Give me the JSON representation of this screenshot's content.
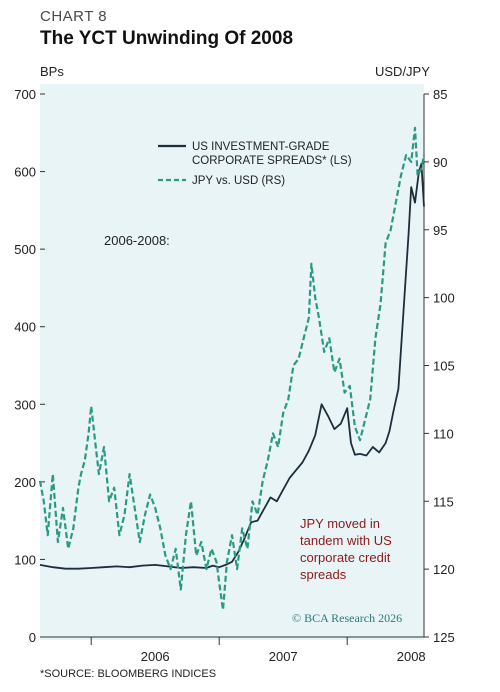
{
  "header": {
    "chart_label": "CHART 8",
    "title": "The YCT Unwinding Of 2008"
  },
  "axes": {
    "left_unit": "BPs",
    "right_unit": "USD/JPY"
  },
  "legend": {
    "spreads_line1": "US INVESTMENT-GRADE",
    "spreads_line2": "CORPORATE SPREADS* (LS)",
    "jpy": "JPY vs. USD (RS)"
  },
  "annotations": {
    "period": "2006-2008:",
    "note_line1": "JPY moved in",
    "note_line2": "tandem with US",
    "note_line3": "corporate credit",
    "note_line4": "spreads"
  },
  "footer": {
    "source": "*SOURCE: BLOOMBERG INDICES",
    "watermark": "© BCA Research 2026"
  },
  "colors": {
    "spreads": "#1c2e3a",
    "jpy": "#2a9a82",
    "panel": "#e8f4f6",
    "annotation": "#8a1a1a"
  },
  "chart_data": {
    "type": "line",
    "x_ticks": [
      "2006",
      "2007",
      "2008"
    ],
    "left_axis": {
      "ylim": [
        0,
        700
      ],
      "ticks": [
        0,
        100,
        200,
        300,
        400,
        500,
        600,
        700
      ]
    },
    "right_axis": {
      "ylim": [
        125,
        85
      ],
      "inverted": true,
      "ticks": [
        85,
        90,
        95,
        100,
        105,
        110,
        115,
        120,
        125
      ]
    },
    "xlim": [
      2005.6,
      2008.6
    ],
    "series": [
      {
        "name": "US INVESTMENT-GRADE CORPORATE SPREADS* (LS)",
        "axis": "left",
        "style": "solid",
        "x": [
          2005.6,
          2005.7,
          2005.8,
          2005.9,
          2006.0,
          2006.1,
          2006.2,
          2006.3,
          2006.4,
          2006.5,
          2006.6,
          2006.7,
          2006.8,
          2006.9,
          2006.95,
          2007.0,
          2007.05,
          2007.1,
          2007.15,
          2007.2,
          2007.25,
          2007.3,
          2007.35,
          2007.4,
          2007.45,
          2007.5,
          2007.55,
          2007.6,
          2007.65,
          2007.7,
          2007.75,
          2007.8,
          2007.85,
          2007.9,
          2007.95,
          2008.0,
          2008.03,
          2008.06,
          2008.1,
          2008.15,
          2008.2,
          2008.25,
          2008.3,
          2008.33,
          2008.36,
          2008.4,
          2008.44,
          2008.48,
          2008.5,
          2008.53,
          2008.56,
          2008.58,
          2008.6
        ],
        "values": [
          93,
          90,
          88,
          88,
          89,
          90,
          91,
          90,
          92,
          93,
          91,
          89,
          90,
          89,
          92,
          90,
          93,
          97,
          110,
          128,
          148,
          150,
          165,
          180,
          175,
          190,
          205,
          215,
          225,
          240,
          260,
          300,
          285,
          268,
          275,
          295,
          250,
          235,
          236,
          234,
          245,
          238,
          250,
          265,
          290,
          320,
          420,
          520,
          580,
          560,
          600,
          610,
          555
        ]
      },
      {
        "name": "JPY vs. USD (RS)",
        "axis": "right",
        "style": "dashed",
        "x": [
          2005.6,
          2005.63,
          2005.66,
          2005.7,
          2005.74,
          2005.78,
          2005.82,
          2005.86,
          2005.9,
          2005.92,
          2005.95,
          2005.98,
          2006.0,
          2006.03,
          2006.06,
          2006.1,
          2006.14,
          2006.18,
          2006.22,
          2006.26,
          2006.3,
          2006.34,
          2006.38,
          2006.42,
          2006.46,
          2006.5,
          2006.54,
          2006.58,
          2006.62,
          2006.66,
          2006.7,
          2006.74,
          2006.78,
          2006.82,
          2006.86,
          2006.9,
          2006.94,
          2006.98,
          2007.0,
          2007.03,
          2007.06,
          2007.1,
          2007.14,
          2007.18,
          2007.22,
          2007.26,
          2007.3,
          2007.34,
          2007.38,
          2007.42,
          2007.46,
          2007.5,
          2007.54,
          2007.58,
          2007.62,
          2007.66,
          2007.7,
          2007.72,
          2007.75,
          2007.78,
          2007.82,
          2007.86,
          2007.9,
          2007.94,
          2007.98,
          2008.02,
          2008.06,
          2008.1,
          2008.14,
          2008.18,
          2008.22,
          2008.26,
          2008.3,
          2008.34,
          2008.38,
          2008.42,
          2008.46,
          2008.5,
          2008.53,
          2008.55,
          2008.58,
          2008.6
        ],
        "values": [
          113.5,
          115.0,
          117.5,
          113.0,
          118.0,
          115.5,
          118.5,
          117.0,
          114.0,
          113.0,
          112.0,
          110.0,
          108.0,
          110.5,
          113.0,
          111.0,
          115.0,
          114.0,
          117.5,
          116.0,
          113.0,
          115.5,
          118.0,
          116.0,
          114.5,
          115.5,
          117.0,
          119.0,
          120.0,
          118.5,
          121.5,
          117.5,
          115.0,
          119.0,
          118.0,
          120.0,
          118.5,
          119.5,
          121.0,
          123.0,
          119.5,
          117.5,
          120.0,
          117.0,
          118.5,
          115.0,
          116.0,
          113.5,
          112.0,
          110.0,
          111.0,
          108.5,
          107.5,
          105.0,
          104.5,
          103.0,
          101.5,
          97.5,
          100.0,
          101.5,
          104.0,
          103.0,
          105.5,
          104.5,
          107.0,
          106.5,
          109.5,
          110.5,
          109.0,
          107.5,
          103.0,
          100.5,
          96.0,
          95.0,
          93.0,
          91.0,
          89.5,
          90.0,
          87.5,
          91.0,
          90.5,
          89.5
        ]
      }
    ]
  }
}
